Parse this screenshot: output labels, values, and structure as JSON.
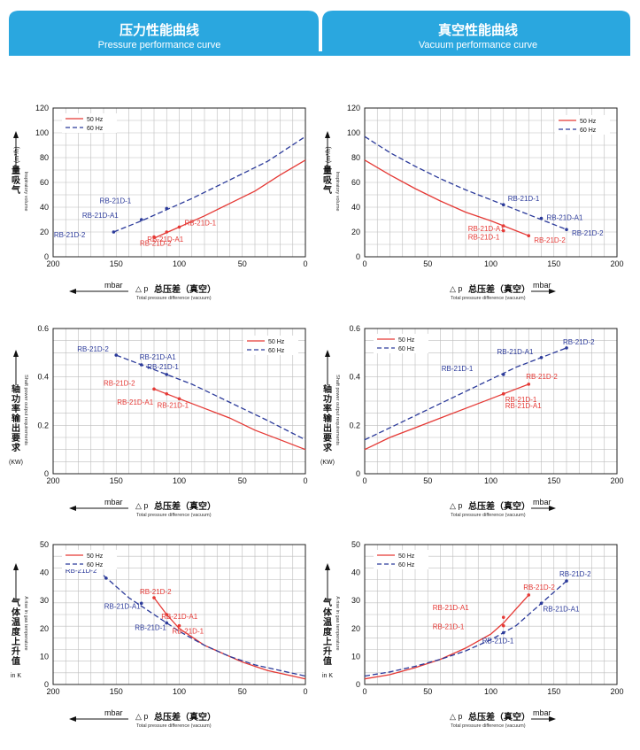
{
  "header": {
    "left_title_zh": "压力性能曲线",
    "left_title_en": "Pressure performance curve",
    "right_title_zh": "真空性能曲线",
    "right_title_en": "Vacuum performance curve"
  },
  "colors": {
    "hz50": "#e53935",
    "hz60": "#2b3a9a",
    "header": "#2aa7df"
  },
  "legend": {
    "hz50": "50 Hz",
    "hz60": "60 Hz"
  },
  "xaxis": {
    "mbar": "mbar",
    "delta": "△ p",
    "zh_pressure": "总压差（真空）",
    "en": "Total pressure difference (vacuum)"
  },
  "ylabels": {
    "volume": {
      "zh": "量吸气",
      "en": "Inspiratory volume",
      "unit": "V (m³/h)"
    },
    "power": {
      "zh": "轴功率输出要求",
      "en": "Shaft power output requirements",
      "unit": "(KW)"
    },
    "temp": {
      "zh": "气体温度上升值",
      "en": "A rise in gas temperature",
      "unit": "in K"
    }
  },
  "chart_data": [
    {
      "id": "pressure-volume",
      "type": "line",
      "xlim": [
        200,
        0
      ],
      "ylim": [
        0,
        120
      ],
      "xticks": [
        200,
        150,
        100,
        50,
        0
      ],
      "yticks": [
        0,
        20,
        40,
        60,
        80,
        100,
        120
      ],
      "series": [
        {
          "name": "50 Hz",
          "style": "solid",
          "x": [
            120,
            100,
            80,
            60,
            40,
            20,
            0
          ],
          "y": [
            15,
            24,
            33,
            43,
            53,
            66,
            78
          ]
        },
        {
          "name": "60 Hz",
          "style": "dashed",
          "x": [
            152,
            130,
            110,
            90,
            70,
            50,
            30,
            0
          ],
          "y": [
            20,
            29,
            38,
            47,
            57,
            67,
            77,
            97
          ]
        }
      ],
      "points": [
        {
          "label": "RB-21D-1",
          "x": 110,
          "y": 39,
          "series": "60 Hz"
        },
        {
          "label": "RB-21D-A1",
          "x": 130,
          "y": 30,
          "series": "60 Hz"
        },
        {
          "label": "RB-21D-2",
          "x": 152,
          "y": 20,
          "series": "60 Hz"
        },
        {
          "label": "RB-21D-1",
          "x": 100,
          "y": 24,
          "series": "50 Hz"
        },
        {
          "label": "RB-21D-A1",
          "x": 110,
          "y": 20,
          "series": "50 Hz"
        },
        {
          "label": "RB-21D-2",
          "x": 120,
          "y": 16,
          "series": "50 Hz"
        }
      ],
      "legend_position": "top-left"
    },
    {
      "id": "vacuum-volume",
      "type": "line",
      "xlim": [
        0,
        200
      ],
      "ylim": [
        0,
        120
      ],
      "xticks": [
        0,
        50,
        100,
        150,
        200
      ],
      "yticks": [
        0,
        20,
        40,
        60,
        80,
        100,
        120
      ],
      "series": [
        {
          "name": "50 Hz",
          "style": "solid",
          "x": [
            0,
            20,
            40,
            60,
            80,
            100,
            120,
            130
          ],
          "y": [
            78,
            66,
            55,
            45,
            36,
            29,
            21,
            17
          ]
        },
        {
          "name": "60 Hz",
          "style": "dashed",
          "x": [
            0,
            20,
            40,
            60,
            80,
            100,
            120,
            140,
            160
          ],
          "y": [
            97,
            84,
            73,
            63,
            54,
            46,
            38,
            30,
            22
          ]
        }
      ],
      "points": [
        {
          "label": "RB-21D-1",
          "x": 110,
          "y": 42,
          "series": "60 Hz"
        },
        {
          "label": "RB-21D-A1",
          "x": 140,
          "y": 31,
          "series": "60 Hz"
        },
        {
          "label": "RB-21D-2",
          "x": 160,
          "y": 22,
          "series": "60 Hz"
        },
        {
          "label": "RB-21D-A1",
          "x": 110,
          "y": 25,
          "series": "50 Hz"
        },
        {
          "label": "RB-21D-1",
          "x": 110,
          "y": 21,
          "series": "50 Hz"
        },
        {
          "label": "RB-21D-2",
          "x": 130,
          "y": 17,
          "series": "50 Hz"
        }
      ],
      "legend_position": "top-right"
    },
    {
      "id": "pressure-power",
      "type": "line",
      "xlim": [
        200,
        0
      ],
      "ylim": [
        0,
        0.6
      ],
      "xticks": [
        200,
        150,
        100,
        50,
        0
      ],
      "yticks": [
        0,
        0.2,
        0.4,
        0.6
      ],
      "series": [
        {
          "name": "50 Hz",
          "style": "solid",
          "x": [
            120,
            100,
            80,
            60,
            40,
            20,
            0
          ],
          "y": [
            0.35,
            0.31,
            0.27,
            0.23,
            0.18,
            0.14,
            0.1
          ]
        },
        {
          "name": "60 Hz",
          "style": "dashed",
          "x": [
            150,
            130,
            110,
            90,
            70,
            50,
            30,
            0
          ],
          "y": [
            0.49,
            0.45,
            0.41,
            0.37,
            0.32,
            0.27,
            0.22,
            0.14
          ]
        }
      ],
      "points": [
        {
          "label": "RB-21D-2",
          "x": 150,
          "y": 0.49,
          "series": "60 Hz"
        },
        {
          "label": "RB-21D-A1",
          "x": 130,
          "y": 0.45,
          "series": "60 Hz"
        },
        {
          "label": "RB-21D-1",
          "x": 110,
          "y": 0.41,
          "series": "60 Hz"
        },
        {
          "label": "RB-21D-2",
          "x": 120,
          "y": 0.35,
          "series": "50 Hz"
        },
        {
          "label": "RB-21D-A1",
          "x": 110,
          "y": 0.33,
          "series": "50 Hz"
        },
        {
          "label": "RB-21D-1",
          "x": 100,
          "y": 0.31,
          "series": "50 Hz"
        }
      ],
      "legend_position": "top-right"
    },
    {
      "id": "vacuum-power",
      "type": "line",
      "xlim": [
        0,
        200
      ],
      "ylim": [
        0,
        0.6
      ],
      "xticks": [
        0,
        50,
        100,
        150,
        200
      ],
      "yticks": [
        0,
        0.2,
        0.4,
        0.6
      ],
      "series": [
        {
          "name": "50 Hz",
          "style": "solid",
          "x": [
            0,
            20,
            40,
            60,
            80,
            100,
            120,
            130
          ],
          "y": [
            0.1,
            0.15,
            0.19,
            0.23,
            0.27,
            0.31,
            0.35,
            0.37
          ]
        },
        {
          "name": "60 Hz",
          "style": "dashed",
          "x": [
            0,
            20,
            40,
            60,
            80,
            100,
            120,
            140,
            160
          ],
          "y": [
            0.14,
            0.19,
            0.24,
            0.29,
            0.34,
            0.39,
            0.44,
            0.48,
            0.52
          ]
        }
      ],
      "points": [
        {
          "label": "RB-21D-1",
          "x": 110,
          "y": 0.41,
          "series": "60 Hz"
        },
        {
          "label": "RB-21D-A1",
          "x": 140,
          "y": 0.48,
          "series": "60 Hz"
        },
        {
          "label": "RB-21D-2",
          "x": 160,
          "y": 0.52,
          "series": "60 Hz"
        },
        {
          "label": "RB-21D-2",
          "x": 130,
          "y": 0.37,
          "series": "50 Hz"
        },
        {
          "label": "RB-21D-1",
          "x": 110,
          "y": 0.33,
          "series": "50 Hz"
        },
        {
          "label": "RB-21D-A1",
          "x": 110,
          "y": 0.33,
          "series": "50 Hz"
        }
      ],
      "legend_position": "top-left"
    },
    {
      "id": "pressure-temp",
      "type": "line",
      "xlim": [
        200,
        0
      ],
      "ylim": [
        0,
        50
      ],
      "xticks": [
        200,
        150,
        100,
        50,
        0
      ],
      "yticks": [
        0,
        10,
        20,
        30,
        40,
        50
      ],
      "series": [
        {
          "name": "50 Hz",
          "style": "solid",
          "x": [
            120,
            110,
            100,
            90,
            80,
            70,
            60,
            50,
            40,
            30,
            20,
            10,
            0
          ],
          "y": [
            31,
            25,
            20,
            17,
            14,
            12,
            10,
            8,
            6.5,
            5,
            4,
            3,
            2
          ]
        },
        {
          "name": "60 Hz",
          "style": "dashed",
          "x": [
            160,
            140,
            120,
            110,
            100,
            80,
            60,
            40,
            20,
            0
          ],
          "y": [
            39,
            31,
            25,
            22,
            19,
            14,
            10,
            7,
            5,
            3
          ]
        }
      ],
      "points": [
        {
          "label": "RB-21D-2",
          "x": 158,
          "y": 38,
          "series": "60 Hz"
        },
        {
          "label": "RB-21D-A1",
          "x": 130,
          "y": 29,
          "series": "60 Hz"
        },
        {
          "label": "RB-21D-1",
          "x": 110,
          "y": 22,
          "series": "60 Hz"
        },
        {
          "label": "RB-21D-2",
          "x": 120,
          "y": 31,
          "series": "50 Hz"
        },
        {
          "label": "RB-21D-A1",
          "x": 110,
          "y": 25,
          "series": "50 Hz"
        },
        {
          "label": "RB-21D-1",
          "x": 100,
          "y": 21,
          "series": "50 Hz"
        }
      ],
      "legend_position": "top-left"
    },
    {
      "id": "vacuum-temp",
      "type": "line",
      "xlim": [
        0,
        200
      ],
      "ylim": [
        0,
        50
      ],
      "xticks": [
        0,
        50,
        100,
        150,
        200
      ],
      "yticks": [
        0,
        10,
        20,
        30,
        40,
        50
      ],
      "series": [
        {
          "name": "50 Hz",
          "style": "solid",
          "x": [
            0,
            20,
            40,
            60,
            80,
            100,
            110,
            120,
            130
          ],
          "y": [
            2,
            3.5,
            6,
            9,
            13,
            18,
            22,
            27,
            32
          ]
        },
        {
          "name": "60 Hz",
          "style": "dashed",
          "x": [
            0,
            20,
            40,
            60,
            80,
            100,
            110,
            120,
            140,
            160
          ],
          "y": [
            3,
            4.5,
            6.5,
            9,
            12,
            16,
            18.5,
            21,
            29,
            37
          ]
        }
      ],
      "points": [
        {
          "label": "RB-21D-2",
          "x": 130,
          "y": 32,
          "series": "50 Hz"
        },
        {
          "label": "RB-21D-A1",
          "x": 110,
          "y": 24,
          "series": "50 Hz"
        },
        {
          "label": "RB-21D-1",
          "x": 110,
          "y": 21,
          "series": "50 Hz"
        },
        {
          "label": "RB-21D-2",
          "x": 160,
          "y": 37,
          "series": "60 Hz"
        },
        {
          "label": "RB-21D-A1",
          "x": 140,
          "y": 29,
          "series": "60 Hz"
        },
        {
          "label": "RB-21D-1",
          "x": 110,
          "y": 18.5,
          "series": "60 Hz"
        }
      ],
      "legend_position": "top-left"
    }
  ]
}
